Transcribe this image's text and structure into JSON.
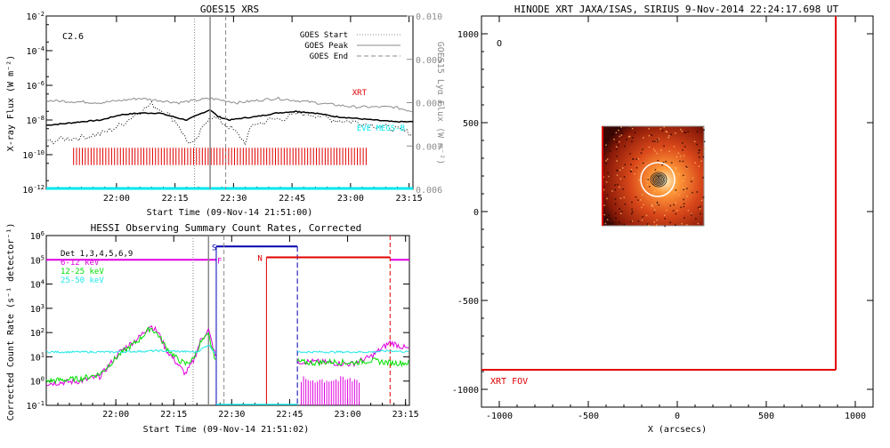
{
  "colors": {
    "axis": "#000000",
    "xrt": "#e00000",
    "goes_long": "#000000",
    "goes_short_dotted": "#000000",
    "lya": "#8c8c8c",
    "eve": "#00e8ee",
    "hessi_6_12": "#e000e0",
    "hessi_12_25": "#00e000",
    "hessi_25_50": "#20e8e8",
    "attenuator": "#0000b0",
    "night": "#e00000"
  },
  "chart_data": [
    {
      "id": "goes",
      "type": "line",
      "title": "GOES15 XRS",
      "xlabel": "Start Time (09-Nov-14 21:51:00)",
      "ylabel": "X-ray Flux (W m⁻²)",
      "ylabel_right": "GOES15 Lyα Flux (W m⁻²)",
      "xlim_min": [
        -9,
        85
      ],
      "xticks_min": [
        9,
        24,
        39,
        54,
        69,
        84
      ],
      "xtick_labels": [
        "22:00",
        "22:15",
        "22:30",
        "22:45",
        "23:00",
        "23:15"
      ],
      "yscale": "log",
      "ylim": [
        1e-12,
        0.01
      ],
      "ytick_exponents": [
        -12,
        -10,
        -8,
        -6,
        -4,
        -2
      ],
      "ylim_right": [
        0.006,
        0.01
      ],
      "yticks_right": [
        "0.006",
        "0.007",
        "0.008",
        "0.009",
        "0.010"
      ],
      "class_label": "C2.6",
      "legend": [
        {
          "name": "GOES Start",
          "style": "dotted"
        },
        {
          "name": "GOES Peak",
          "style": "solid"
        },
        {
          "name": "GOES End",
          "style": "dashed"
        }
      ],
      "event_lines_min": {
        "start": 29,
        "peak": 33,
        "end": 37
      },
      "labels": {
        "xrt": "XRT",
        "eve": "EVE MEGS-B"
      },
      "series": [
        {
          "name": "GOES long",
          "x": [
            -9,
            -4,
            0,
            5,
            10,
            15,
            20,
            25,
            27,
            30,
            32,
            33,
            35,
            38,
            41,
            45,
            50,
            55,
            60,
            65,
            70,
            75,
            80,
            85
          ],
          "logy": [
            -8.3,
            -8.2,
            -8.1,
            -8.0,
            -7.7,
            -7.6,
            -7.6,
            -7.9,
            -8.0,
            -7.7,
            -7.5,
            -7.4,
            -7.8,
            -8.0,
            -7.9,
            -7.8,
            -7.6,
            -7.5,
            -7.6,
            -7.8,
            -7.9,
            -8.0,
            -8.1,
            -8.1
          ]
        },
        {
          "name": "GOES short",
          "x": [
            -9,
            -5,
            0,
            5,
            10,
            15,
            18,
            22,
            25,
            27,
            29,
            31,
            33,
            35,
            38,
            40,
            42,
            44,
            46,
            48,
            52,
            56,
            60,
            65,
            70,
            75,
            80,
            85
          ],
          "logy": [
            -9.3,
            -9.1,
            -9.0,
            -8.8,
            -8.3,
            -7.5,
            -7.1,
            -7.6,
            -8.3,
            -9.2,
            -9.4,
            -8.5,
            -7.7,
            -8.0,
            -8.4,
            -8.8,
            -9.3,
            -8.2,
            -8.2,
            -8.0,
            -7.9,
            -7.6,
            -7.7,
            -8.0,
            -8.1,
            -8.3,
            -8.5,
            -8.8
          ]
        },
        {
          "name": "Lya",
          "x": [
            -9,
            5,
            15,
            25,
            33,
            40,
            50,
            60,
            70,
            80,
            85
          ],
          "y": [
            0.00805,
            0.008,
            0.0081,
            0.008,
            0.0081,
            0.008,
            0.0081,
            0.008,
            0.0079,
            0.0079,
            0.0078
          ]
        },
        {
          "name": "EVE MEGS-B",
          "x": [
            -9,
            85
          ],
          "logy": [
            -12,
            -12
          ]
        }
      ],
      "xrt_obs_min": [
        -2,
        73
      ]
    },
    {
      "id": "hessi",
      "type": "line",
      "title": "HESSI Observing Summary Count Rates, Corrected",
      "xlabel": "Start Time (09-Nov-14 21:51:02)",
      "ylabel": "Corrected Count Rate (s⁻¹ detector⁻¹)",
      "xlim_min": [
        -9,
        85
      ],
      "xticks_min": [
        9,
        24,
        39,
        54,
        69,
        84
      ],
      "xtick_labels": [
        "22:00",
        "22:15",
        "22:30",
        "22:45",
        "23:00",
        "23:15"
      ],
      "yscale": "log",
      "ylim": [
        0.1,
        1000000.0
      ],
      "ytick_exponents": [
        -1,
        0,
        1,
        2,
        3,
        4,
        5,
        6
      ],
      "legend": [
        {
          "name": "Det 1,3,4,5,6,9",
          "color": "#000000"
        },
        {
          "name": "6-12 keV",
          "color": "#e000e0"
        },
        {
          "name": "12-25 keV",
          "color": "#00e000"
        },
        {
          "name": "25-50 keV",
          "color": "#20e8e8"
        }
      ],
      "flag_labels": {
        "saa": "S",
        "flare": "F",
        "night": "N"
      },
      "saa_min": [
        35,
        56
      ],
      "night_min": [
        48,
        80
      ],
      "event_lines_min": {
        "start": 29,
        "peak": 33,
        "end": 37
      },
      "series": [
        {
          "name": "6-12 keV",
          "x": [
            -9,
            0,
            5,
            10,
            15,
            18,
            20,
            22,
            25,
            27,
            29,
            31,
            33,
            34,
            35
          ],
          "logy": [
            -0.1,
            0.0,
            0.2,
            1.2,
            1.8,
            2.3,
            2.0,
            1.3,
            0.7,
            0.3,
            0.8,
            1.7,
            2.1,
            1.5,
            0.9
          ]
        },
        {
          "name": "12-25 keV",
          "x": [
            -9,
            0,
            5,
            10,
            15,
            18,
            20,
            22,
            25,
            27,
            29,
            31,
            33,
            34,
            35
          ],
          "logy": [
            0.0,
            0.1,
            0.3,
            1.1,
            1.7,
            2.2,
            1.9,
            1.4,
            0.9,
            0.7,
            0.9,
            1.6,
            1.9,
            1.3,
            0.8
          ]
        },
        {
          "name": "25-50 keV",
          "x": [
            -9,
            0,
            10,
            20,
            30,
            33,
            35
          ],
          "logy": [
            1.2,
            1.2,
            1.2,
            1.25,
            1.2,
            1.5,
            1.1
          ]
        },
        {
          "name": "6-12 keV late",
          "x": [
            56,
            60,
            65,
            70,
            75,
            80,
            85
          ],
          "logy": [
            0.8,
            0.8,
            0.75,
            0.7,
            1.0,
            1.6,
            1.3
          ]
        },
        {
          "name": "12-25 keV late",
          "x": [
            56,
            60,
            65,
            70,
            75,
            80,
            85
          ],
          "logy": [
            0.8,
            0.75,
            0.8,
            0.75,
            0.85,
            0.75,
            0.75
          ]
        },
        {
          "name": "25-50 keV late",
          "x": [
            56,
            60,
            65,
            70,
            75,
            80,
            85
          ],
          "logy": [
            1.2,
            1.2,
            1.2,
            1.2,
            1.2,
            1.25,
            1.2
          ]
        }
      ]
    },
    {
      "id": "xrt_map",
      "type": "scatter",
      "title": "HINODE XRT JAXA/ISAS, SIRIUS  9-Nov-2014 22:24:17.698 UT",
      "xlabel": "X (arcsecs)",
      "xlim": [
        -1100,
        1100
      ],
      "ylim": [
        -1100,
        1100
      ],
      "xticks": [
        -1000,
        -500,
        0,
        500,
        1000
      ],
      "yticks": [
        -1000,
        -500,
        0,
        500,
        1000
      ],
      "fov_label": "XRT FOV",
      "fov_corner": [
        890,
        -890
      ],
      "image_extent": [
        -420,
        150,
        -80,
        480
      ],
      "flare_center": [
        -110,
        180
      ],
      "marker_O": [
        -1000,
        950
      ],
      "marker_label": "O"
    }
  ]
}
